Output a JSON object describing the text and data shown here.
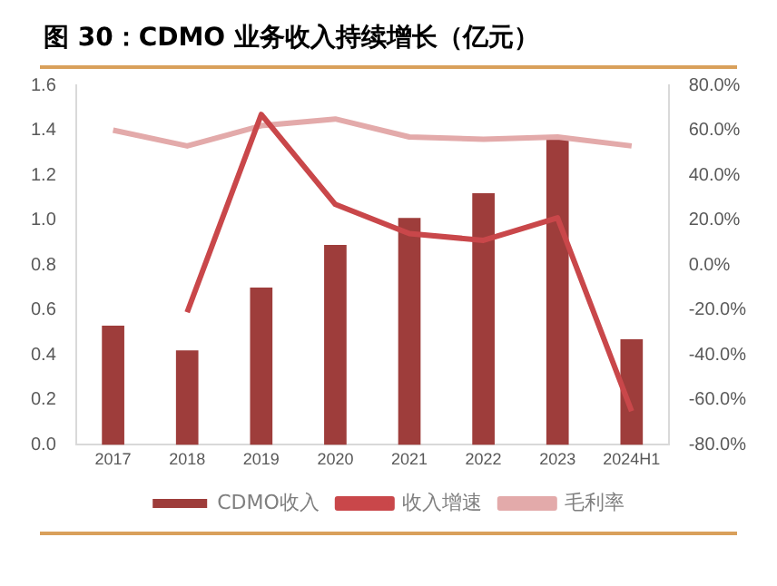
{
  "chart_data": {
    "type": "bar",
    "title": "图 30：CDMO 业务收入持续增长（亿元）",
    "categories": [
      "2017",
      "2018",
      "2019",
      "2020",
      "2021",
      "2022",
      "2023",
      "2024H1"
    ],
    "series": [
      {
        "name": "CDMO收入",
        "color": "#9e3d3b",
        "values": [
          0.53,
          0.42,
          0.7,
          0.89,
          1.01,
          1.12,
          1.36,
          0.47
        ]
      },
      {
        "name": "收入增速",
        "type": "line",
        "axis": "y2",
        "color": "#c9474a",
        "values": [
          null,
          -21,
          67,
          27,
          14,
          11,
          21,
          -65
        ]
      },
      {
        "name": "毛利率",
        "type": "line",
        "axis": "y2",
        "color": "#e3aaaa",
        "values": [
          60,
          53,
          62,
          65,
          57,
          56,
          57,
          53
        ]
      }
    ],
    "ylim": [
      0,
      1.6
    ],
    "yticks": [
      {
        "value": 0,
        "label": "0.0"
      },
      {
        "value": 0.2,
        "label": "0.2"
      },
      {
        "value": 0.4,
        "label": "0.4"
      },
      {
        "value": 0.6,
        "label": "0.6"
      },
      {
        "value": 0.8,
        "label": "0.8"
      },
      {
        "value": 1,
        "label": "1.0"
      },
      {
        "value": 1.2,
        "label": "1.2"
      },
      {
        "value": 1.4,
        "label": "1.4"
      },
      {
        "value": 1.6,
        "label": "1.6"
      }
    ],
    "y2lim": [
      -80,
      80
    ],
    "y2ticks": [
      {
        "value": -80,
        "label": "-80.0%"
      },
      {
        "value": -60,
        "label": "-60.0%"
      },
      {
        "value": -40,
        "label": "-40.0%"
      },
      {
        "value": -20,
        "label": "-20.0%"
      },
      {
        "value": 0,
        "label": "0.0%"
      },
      {
        "value": 20,
        "label": "20.0%"
      },
      {
        "value": 40,
        "label": "40.0%"
      },
      {
        "value": 60,
        "label": "60.0%"
      },
      {
        "value": 80,
        "label": "80.0%"
      }
    ],
    "grid": false,
    "legend": "bottom",
    "marker": "none"
  }
}
